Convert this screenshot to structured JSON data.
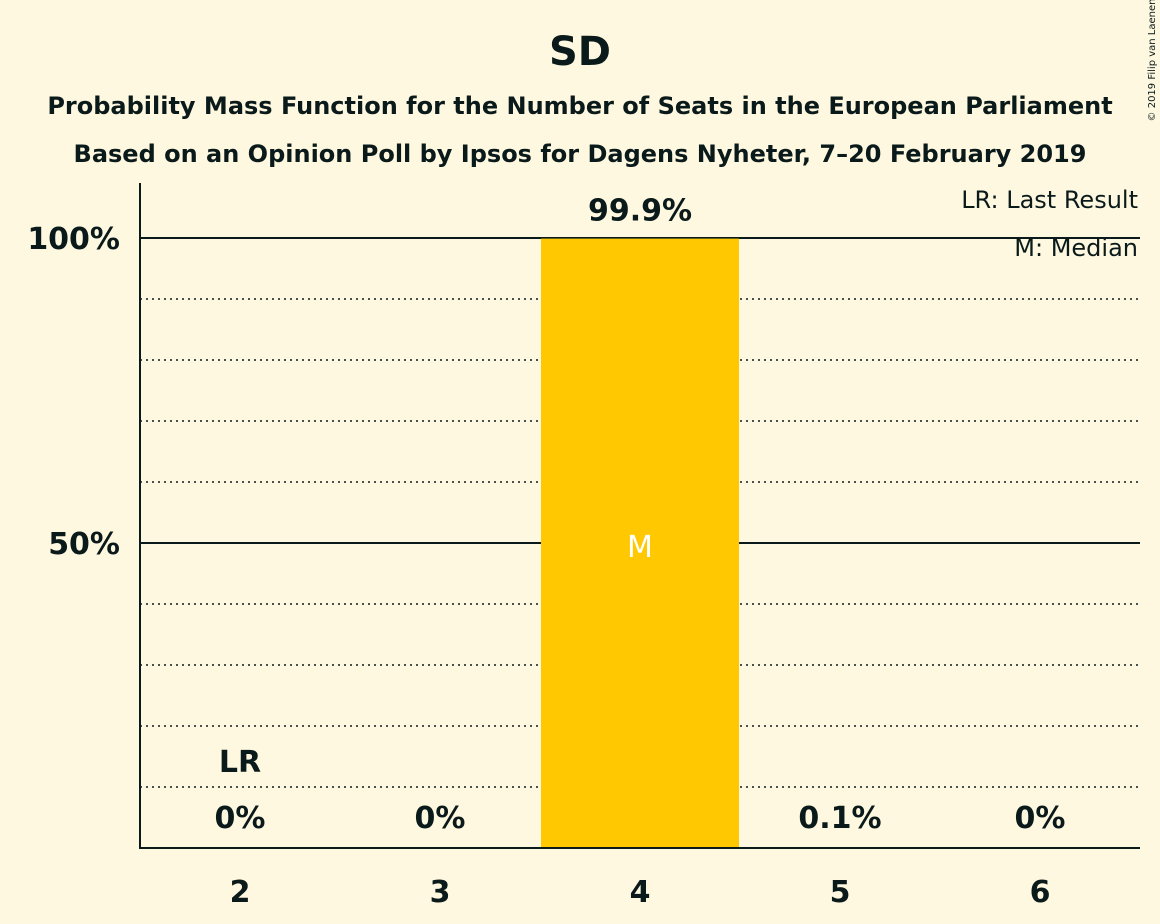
{
  "chart_data": {
    "type": "bar",
    "title": "SD",
    "subtitle_line1": "Probability Mass Function for the Number of Seats in the European Parliament",
    "subtitle_line2": "Based on an Opinion Poll by Ipsos for Dagens Nyheter, 7–20 February 2019",
    "copyright": "© 2019 Filip van Laenen",
    "categories": [
      "2",
      "3",
      "4",
      "5",
      "6"
    ],
    "values": [
      0,
      0,
      99.9,
      0.1,
      0
    ],
    "value_labels": [
      "0%",
      "0%",
      "99.9%",
      "0.1%",
      "0%"
    ],
    "ylim": [
      0,
      110
    ],
    "yticks": [
      {
        "value": 50,
        "label": "50%"
      },
      {
        "value": 100,
        "label": "100%"
      }
    ],
    "minor_gridlines": [
      10,
      20,
      30,
      40,
      60,
      70,
      80,
      90
    ],
    "last_result": {
      "category": "2",
      "label": "LR"
    },
    "median": {
      "category": "4",
      "label": "M"
    },
    "legend": [
      "LR: Last Result",
      "M: Median"
    ],
    "legend_position": "top-right",
    "bar_color": "#FFC800"
  }
}
